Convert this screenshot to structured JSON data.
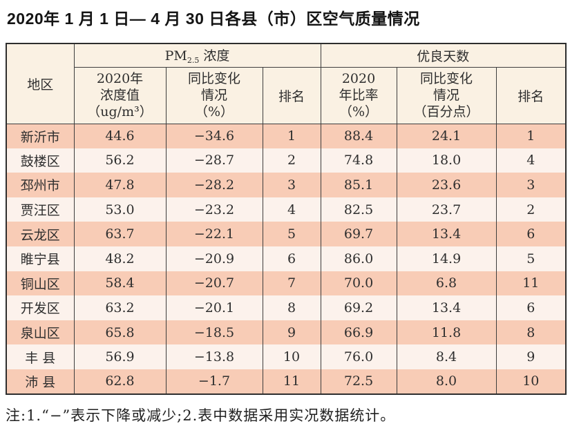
{
  "title": "2020年 1 月 1 日— 4 月 30 日各县（市）区空气质量情况",
  "table": {
    "header": {
      "region": "地区",
      "pm_group_prefix": "PM",
      "pm_group_sub": "2.5",
      "pm_group_suffix": " 浓度",
      "good_days_group": "优良天数",
      "pm_value": "2020年\n浓度值\n（ug/m³）",
      "pm_change": "同比变化\n情况\n（%）",
      "pm_rank": "排名",
      "ratio": "2020\n年比率\n（%）",
      "ratio_change": "同比变化\n情况\n（百分点）",
      "ratio_rank": "排名"
    },
    "columns": [
      "region",
      "pm_value",
      "pm_change",
      "pm_rank",
      "ratio",
      "ratio_change",
      "ratio_rank"
    ],
    "rows": [
      {
        "region": "新沂市",
        "pm_value": "44.6",
        "pm_change": "−34.6",
        "pm_rank": "1",
        "ratio": "88.4",
        "ratio_change": "24.1",
        "ratio_rank": "1"
      },
      {
        "region": "鼓楼区",
        "pm_value": "56.2",
        "pm_change": "−28.7",
        "pm_rank": "2",
        "ratio": "74.8",
        "ratio_change": "18.0",
        "ratio_rank": "4"
      },
      {
        "region": "邳州市",
        "pm_value": "47.8",
        "pm_change": "−28.2",
        "pm_rank": "3",
        "ratio": "85.1",
        "ratio_change": "23.6",
        "ratio_rank": "3"
      },
      {
        "region": "贾汪区",
        "pm_value": "53.0",
        "pm_change": "−23.2",
        "pm_rank": "4",
        "ratio": "82.5",
        "ratio_change": "23.7",
        "ratio_rank": "2"
      },
      {
        "region": "云龙区",
        "pm_value": "63.7",
        "pm_change": "−22.1",
        "pm_rank": "5",
        "ratio": "69.7",
        "ratio_change": "13.4",
        "ratio_rank": "6"
      },
      {
        "region": "睢宁县",
        "pm_value": "48.2",
        "pm_change": "−20.9",
        "pm_rank": "6",
        "ratio": "86.0",
        "ratio_change": "14.9",
        "ratio_rank": "5"
      },
      {
        "region": "铜山区",
        "pm_value": "58.4",
        "pm_change": "−20.7",
        "pm_rank": "7",
        "ratio": "70.0",
        "ratio_change": "6.8",
        "ratio_rank": "11"
      },
      {
        "region": "开发区",
        "pm_value": "63.2",
        "pm_change": "−20.1",
        "pm_rank": "8",
        "ratio": "69.2",
        "ratio_change": "13.4",
        "ratio_rank": "6"
      },
      {
        "region": "泉山区",
        "pm_value": "65.8",
        "pm_change": "−18.5",
        "pm_rank": "9",
        "ratio": "66.9",
        "ratio_change": "11.8",
        "ratio_rank": "8"
      },
      {
        "region": "丰 县",
        "pm_value": "56.9",
        "pm_change": "−13.8",
        "pm_rank": "10",
        "ratio": "76.0",
        "ratio_change": "8.4",
        "ratio_rank": "9"
      },
      {
        "region": "沛 县",
        "pm_value": "62.8",
        "pm_change": "−1.7",
        "pm_rank": "11",
        "ratio": "72.5",
        "ratio_change": "8.0",
        "ratio_rank": "10"
      }
    ]
  },
  "note": "注:1.“−”表示下降或减少;2.表中数据采用实况数据统计。",
  "colors": {
    "row_pink": "#f8ccb6",
    "row_light": "#fcf2ec",
    "header_bg": "#faf1e3",
    "border": "#3c3c3c"
  }
}
